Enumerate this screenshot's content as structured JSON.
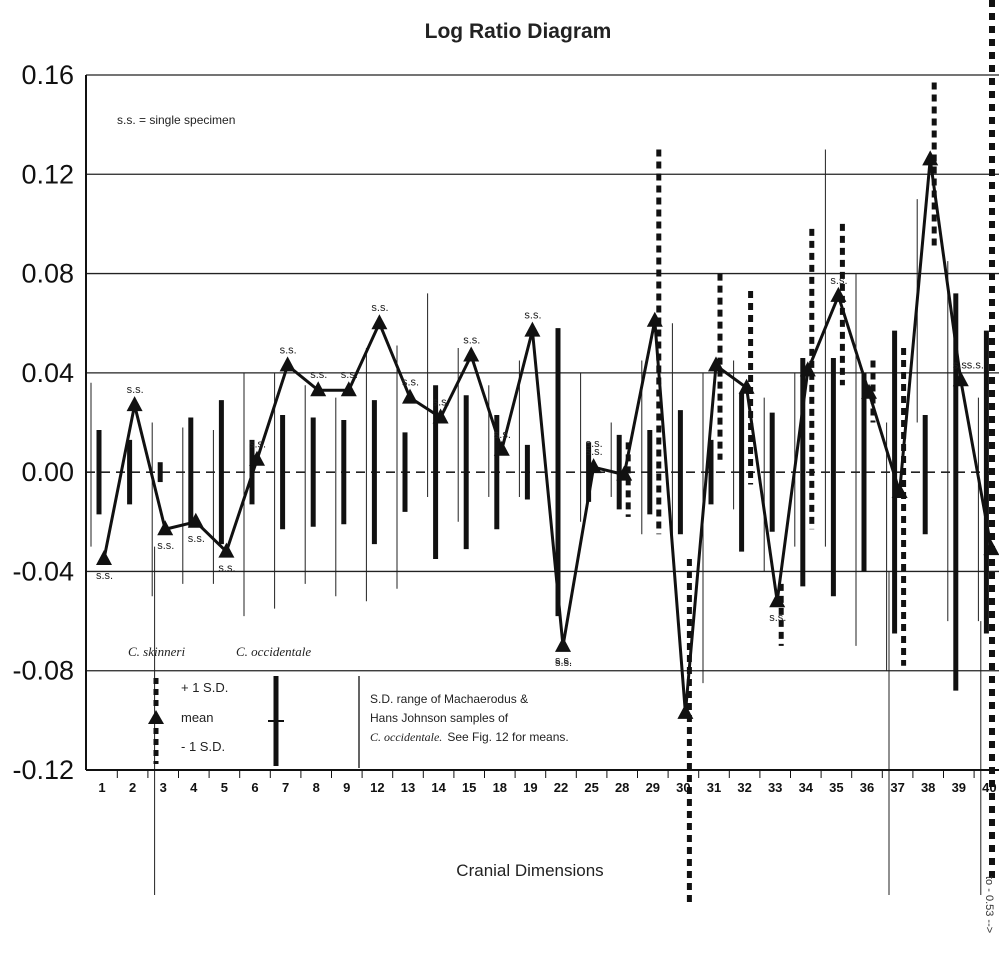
{
  "chart_data": {
    "type": "line",
    "title": "Log Ratio Diagram",
    "xlabel": "Cranial Dimensions",
    "ylabel": "",
    "ylim": [
      -0.12,
      0.16
    ],
    "yticks": [
      "0.16",
      "0.12",
      "0.08",
      "0.04",
      "0.00",
      "-0.04",
      "-0.08",
      "-0.12"
    ],
    "grid": "horizontal",
    "categories": [
      "1",
      "2",
      "3",
      "4",
      "5",
      "6",
      "7",
      "8",
      "9",
      "12",
      "13",
      "14",
      "15",
      "18",
      "19",
      "22",
      "25",
      "28",
      "29",
      "30",
      "31",
      "32",
      "33",
      "34",
      "35",
      "36",
      "37",
      "38",
      "39",
      "40"
    ],
    "series": [
      {
        "name": "C. skinneri",
        "style": "mean triangles connected by line",
        "values": [
          -0.035,
          0.027,
          -0.023,
          -0.02,
          -0.032,
          0.005,
          0.043,
          0.033,
          0.033,
          0.06,
          0.03,
          0.022,
          0.047,
          0.009,
          0.057,
          -0.07,
          0.002,
          -0.001,
          0.061,
          -0.097,
          0.043,
          0.034,
          -0.052,
          0.041,
          0.071,
          0.032,
          -0.008,
          0.126,
          0.037,
          -0.031
        ]
      }
    ],
    "single_specimen_label": "s.s.",
    "single_specimen_note": "s.s. = single specimen",
    "annotations": [
      {
        "text": "C. skinneri"
      },
      {
        "text": "C. occidentale"
      }
    ],
    "legend": {
      "plus_sd": "+ 1 S.D.",
      "mean": "mean",
      "minus_sd": "- 1 S.D.",
      "range_line1": "S.D. range of Machaerodus &",
      "range_line2": "Hans Johnson samples of",
      "range_line3_italic": "C. occidentale.",
      "range_line3_rest": "See Fig. 12 for means."
    },
    "edge_label": "to - 0.53 -->"
  },
  "colors": {
    "ink": "#1a1a1a",
    "grid": "#222222",
    "background": "#ffffff"
  }
}
